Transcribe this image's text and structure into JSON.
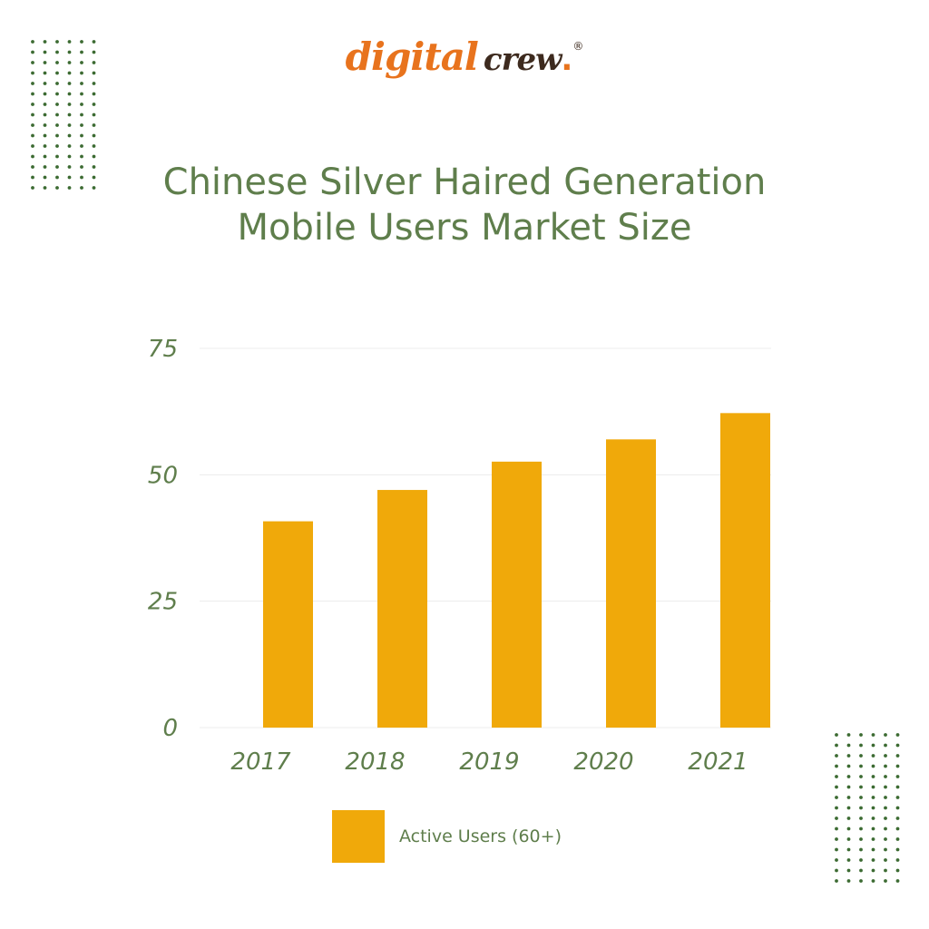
{
  "logo": {
    "word1": "digital",
    "word2": "crew",
    "dot": ".",
    "registered": "®",
    "color_word1": "#e8731d",
    "color_word2": "#3d2a1e"
  },
  "colors": {
    "title": "#5f7e4c",
    "tick_label": "#5f7e4c",
    "bar": "#f0a90a",
    "grid": "#ececec",
    "dots": "#3c6b32"
  },
  "chart_data": {
    "type": "bar",
    "title": "Chinese Silver Haired Generation Mobile Users Market Size",
    "categories": [
      "2017",
      "2018",
      "2019",
      "2020",
      "2021"
    ],
    "series": [
      {
        "name": "Active Users (60+)",
        "values": [
          40.8,
          47.0,
          52.6,
          57.0,
          62.2
        ]
      }
    ],
    "yticks": [
      "0",
      "25",
      "50",
      "75"
    ],
    "ylim": [
      0,
      75
    ],
    "xlabel": "",
    "ylabel": "",
    "grid": true,
    "legend": "bottom"
  }
}
